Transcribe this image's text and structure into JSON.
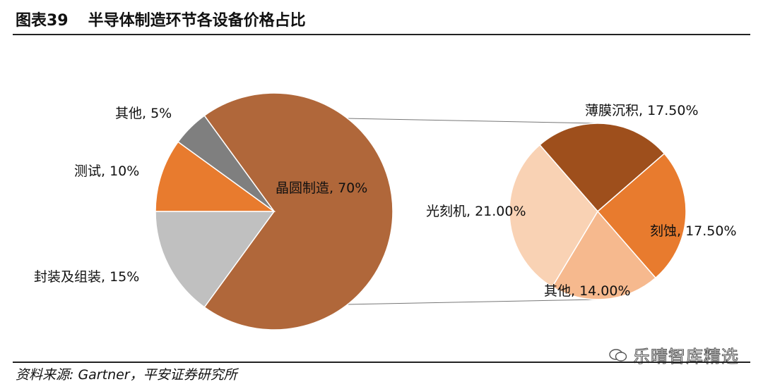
{
  "header": {
    "figure_number": "图表39",
    "title": "半导体制造环节各设备价格占比"
  },
  "source": "资料来源: Gartner，平安证券研究所",
  "watermark": "乐晴智库精选",
  "colors": {
    "wafer": "#B0673A",
    "test": "#E87B2E",
    "other": "#7F7F7F",
    "packaging": "#C0C0C0",
    "thinfilm": "#9E4F1C",
    "etch": "#E87B2E",
    "other2": "#F6B98E",
    "litho": "#F9D2B4"
  },
  "chart_data": [
    {
      "type": "pie",
      "title": "",
      "slices": [
        {
          "label": "晶圆制造, 70%",
          "value": 70,
          "color": "#B0673A"
        },
        {
          "label": "封装及组装, 15%",
          "value": 15,
          "color": "#C0C0C0"
        },
        {
          "label": "测试, 10%",
          "value": 10,
          "color": "#E87B2E"
        },
        {
          "label": "其他, 5%",
          "value": 5,
          "color": "#7F7F7F"
        }
      ]
    },
    {
      "type": "pie",
      "title": "",
      "slices": [
        {
          "label": "薄膜沉积, 17.50%",
          "value": 17.5,
          "color": "#9E4F1C"
        },
        {
          "label": "刻蚀, 17.50%",
          "value": 17.5,
          "color": "#E87B2E"
        },
        {
          "label": "其他, 14.00%",
          "value": 14.0,
          "color": "#F6B98E"
        },
        {
          "label": "光刻机, 21.00%",
          "value": 21.0,
          "color": "#F9D2B4"
        }
      ]
    }
  ]
}
